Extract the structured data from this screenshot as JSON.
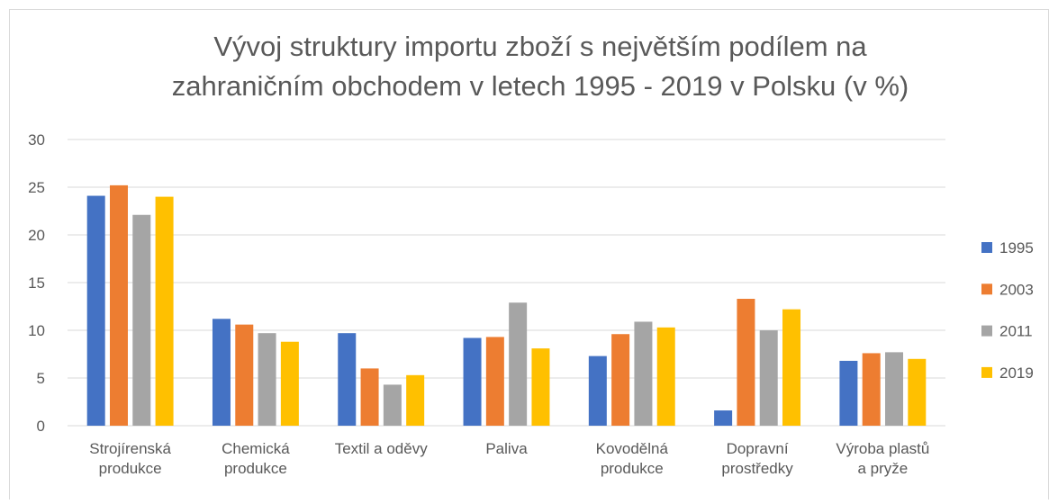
{
  "chart_data": {
    "type": "bar",
    "title": "Vývoj struktury importu zboží s největším podílem na\nzahraničním obchodem v letech 1995 - 2019  v Polsku (v %)",
    "categories": [
      "Strojírenská\nprodukce",
      "Chemická\nprodukce",
      "Textil a oděvy",
      "Paliva",
      "Kovodělná\nprodukce",
      "Dopravní\nprostředky",
      "Výroba plastů\na pryže"
    ],
    "series": [
      {
        "name": "1995",
        "color": "#4472c4",
        "values": [
          24.1,
          11.2,
          9.7,
          9.2,
          7.3,
          1.6,
          6.8
        ]
      },
      {
        "name": "2003",
        "color": "#ed7d31",
        "values": [
          25.2,
          10.6,
          6.0,
          9.3,
          9.6,
          13.3,
          7.6
        ]
      },
      {
        "name": "2011",
        "color": "#a5a5a5",
        "values": [
          22.1,
          9.7,
          4.3,
          12.9,
          10.9,
          10.0,
          7.7
        ]
      },
      {
        "name": "2019",
        "color": "#ffc000",
        "values": [
          24.0,
          8.8,
          5.3,
          8.1,
          10.3,
          12.2,
          7.0
        ]
      }
    ],
    "ylim": [
      0,
      30
    ],
    "yticks": [
      0,
      5,
      10,
      15,
      20,
      25,
      30
    ],
    "grid": true,
    "legend": "right"
  }
}
